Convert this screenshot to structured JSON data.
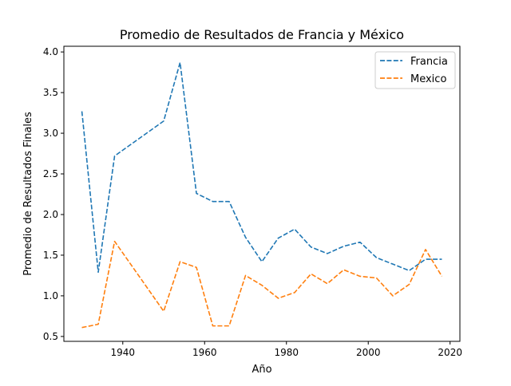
{
  "chart_data": {
    "type": "line",
    "title": "Promedio de Resultados de Francia y México",
    "xlabel": "Año",
    "ylabel": "Promedio de Resultados Finales",
    "xlim": [
      1925.6,
      2022.4
    ],
    "ylim": [
      0.44,
      4.07
    ],
    "xticks": [
      1940,
      1960,
      1980,
      2000,
      2020
    ],
    "yticks": [
      0.5,
      1.0,
      1.5,
      2.0,
      2.5,
      3.0,
      3.5,
      4.0
    ],
    "xtick_labels": [
      "1940",
      "1960",
      "1980",
      "2000",
      "2020"
    ],
    "ytick_labels": [
      "0.5",
      "1.0",
      "1.5",
      "2.0",
      "2.5",
      "3.0",
      "3.5",
      "4.0"
    ],
    "grid": false,
    "legend_position": "top-right",
    "series": [
      {
        "name": "Francia",
        "color": "#1f77b4",
        "line_style": "dashed",
        "points": [
          [
            1930,
            3.27
          ],
          [
            1934,
            1.29
          ],
          [
            1938,
            2.72
          ],
          [
            1950,
            3.15
          ],
          [
            1954,
            3.87
          ],
          [
            1958,
            2.26
          ],
          [
            1962,
            2.16
          ],
          [
            1966,
            2.16
          ],
          [
            1970,
            1.72
          ],
          [
            1974,
            1.42
          ],
          [
            1978,
            1.71
          ],
          [
            1982,
            1.82
          ],
          [
            1986,
            1.6
          ],
          [
            1990,
            1.52
          ],
          [
            1994,
            1.61
          ],
          [
            1998,
            1.66
          ],
          [
            2002,
            1.47
          ],
          [
            2006,
            1.39
          ],
          [
            2010,
            1.31
          ],
          [
            2014,
            1.45
          ],
          [
            2018,
            1.45
          ]
        ]
      },
      {
        "name": "Mexico",
        "color": "#ff7f0e",
        "line_style": "dashed",
        "points": [
          [
            1930,
            0.61
          ],
          [
            1934,
            0.65
          ],
          [
            1938,
            1.67
          ],
          [
            1950,
            0.81
          ],
          [
            1954,
            1.42
          ],
          [
            1958,
            1.35
          ],
          [
            1962,
            0.63
          ],
          [
            1966,
            0.63
          ],
          [
            1970,
            1.25
          ],
          [
            1974,
            1.13
          ],
          [
            1978,
            0.97
          ],
          [
            1982,
            1.04
          ],
          [
            1986,
            1.27
          ],
          [
            1990,
            1.15
          ],
          [
            1994,
            1.32
          ],
          [
            1998,
            1.24
          ],
          [
            2002,
            1.22
          ],
          [
            2006,
            1.0
          ],
          [
            2010,
            1.14
          ],
          [
            2014,
            1.57
          ],
          [
            2018,
            1.24
          ]
        ]
      }
    ]
  }
}
